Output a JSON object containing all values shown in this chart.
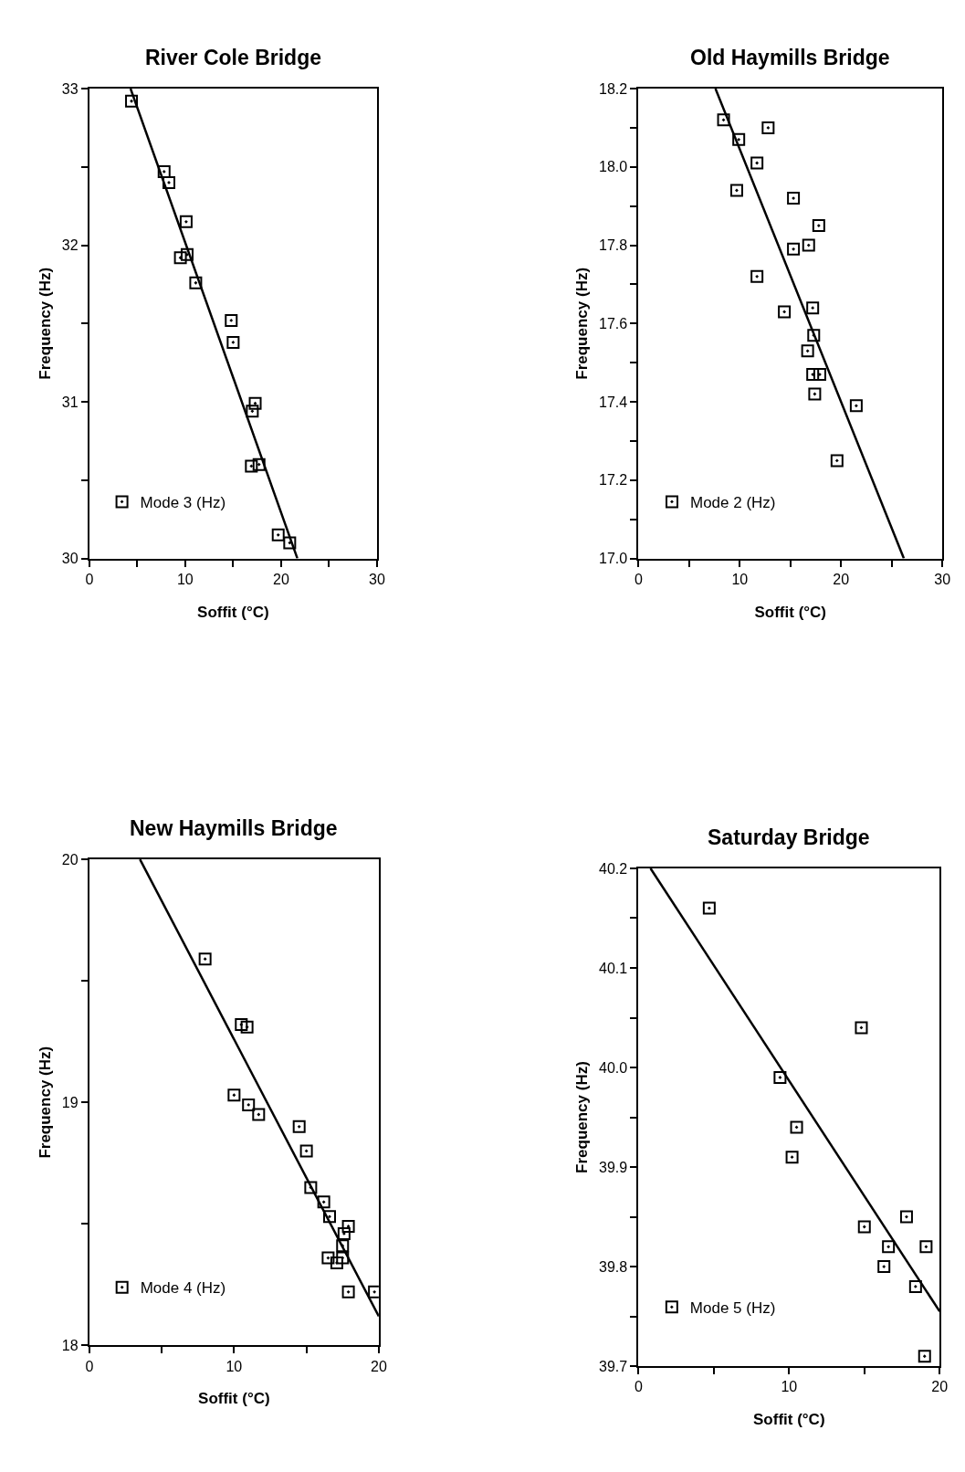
{
  "chart_data": [
    {
      "type": "scatter",
      "title": "River Cole Bridge",
      "xlabel": "Soffit (°C)",
      "ylabel": "Frequency (Hz)",
      "xlim": [
        0,
        30
      ],
      "ylim": [
        30,
        33
      ],
      "xticks": [
        0,
        {
          "value": 5,
          "label": null
        },
        10,
        {
          "value": 15,
          "label": null
        },
        20,
        {
          "value": 25,
          "label": null
        },
        30
      ],
      "yticks": [
        30,
        {
          "value": 30.5,
          "label": null
        },
        31,
        {
          "value": 31.5,
          "label": null
        },
        32,
        {
          "value": 32.5,
          "label": null
        },
        33
      ],
      "legend": "bottom left",
      "series": [
        {
          "name": "Mode 3 (Hz)",
          "marker": "square",
          "color": "#000000",
          "x": [
            4.4,
            7.8,
            8.3,
            10.1,
            9.5,
            10.2,
            11.1,
            14.8,
            15.0,
            17.3,
            17.0,
            16.9,
            17.7,
            19.7,
            20.9
          ],
          "values": [
            32.92,
            32.47,
            32.4,
            32.15,
            31.92,
            31.94,
            31.76,
            31.52,
            31.38,
            30.99,
            30.94,
            30.59,
            30.6,
            30.15,
            30.1
          ]
        },
        {
          "type": "line",
          "line_style": "solid",
          "color": "#000000",
          "x": [
            4.3,
            21.7
          ],
          "values": [
            33.0,
            30.0
          ]
        }
      ]
    },
    {
      "type": "scatter",
      "title": "Old Haymills Bridge",
      "xlabel": "Soffit (°C)",
      "ylabel": "Frequency (Hz)",
      "xlim": [
        0,
        30
      ],
      "ylim": [
        17.0,
        18.2
      ],
      "xticks": [
        0,
        {
          "value": 5,
          "label": null
        },
        10,
        {
          "value": 15,
          "label": null
        },
        20,
        {
          "value": 25,
          "label": null
        },
        30
      ],
      "yticks": [
        {
          "value": 17.0,
          "label": "17.0"
        },
        {
          "value": 17.1,
          "label": null
        },
        {
          "value": 17.2,
          "label": "17.2"
        },
        {
          "value": 17.3,
          "label": null
        },
        {
          "value": 17.4,
          "label": "17.4"
        },
        {
          "value": 17.5,
          "label": null
        },
        {
          "value": 17.6,
          "label": "17.6"
        },
        {
          "value": 17.7,
          "label": null
        },
        {
          "value": 17.8,
          "label": "17.8"
        },
        {
          "value": 17.9,
          "label": null
        },
        {
          "value": 18.0,
          "label": "18.0"
        },
        {
          "value": 18.1,
          "label": null
        },
        {
          "value": 18.2,
          "label": "18.2"
        }
      ],
      "legend": "bottom left",
      "series": [
        {
          "name": "Mode 2 (Hz)",
          "marker": "square",
          "color": "#000000",
          "x": [
            8.4,
            9.9,
            12.8,
            11.7,
            9.7,
            15.3,
            17.8,
            16.8,
            15.3,
            11.7,
            14.4,
            17.2,
            17.3,
            16.7,
            17.2,
            17.9,
            17.4,
            21.5,
            19.6
          ],
          "values": [
            18.12,
            18.07,
            18.1,
            18.01,
            17.94,
            17.92,
            17.85,
            17.8,
            17.79,
            17.72,
            17.63,
            17.64,
            17.57,
            17.53,
            17.47,
            17.47,
            17.42,
            17.39,
            17.25
          ]
        },
        {
          "type": "line",
          "line_style": "solid",
          "color": "#000000",
          "x": [
            7.6,
            26.2
          ],
          "values": [
            18.2,
            17.0
          ]
        }
      ]
    },
    {
      "type": "scatter",
      "title": "New Haymills Bridge",
      "xlabel": "Soffit (°C)",
      "ylabel": "Frequency (Hz)",
      "xlim": [
        0,
        20
      ],
      "ylim": [
        18,
        20
      ],
      "xticks": [
        0,
        {
          "value": 5,
          "label": null
        },
        10,
        {
          "value": 15,
          "label": null
        },
        20
      ],
      "yticks": [
        18,
        {
          "value": 18.5,
          "label": null
        },
        19,
        {
          "value": 19.5,
          "label": null
        },
        20
      ],
      "legend": "bottom left",
      "series": [
        {
          "name": "Mode 4 (Hz)",
          "marker": "square",
          "color": "#000000",
          "x": [
            8.0,
            10.5,
            10.9,
            10.0,
            11.0,
            11.7,
            14.5,
            15.0,
            15.3,
            16.2,
            16.6,
            17.9,
            17.6,
            17.5,
            16.5,
            17.1,
            17.5,
            17.9,
            19.7
          ],
          "values": [
            19.59,
            19.32,
            19.31,
            19.03,
            18.99,
            18.95,
            18.9,
            18.8,
            18.65,
            18.59,
            18.53,
            18.49,
            18.46,
            18.41,
            18.36,
            18.34,
            18.36,
            18.22,
            18.22
          ]
        },
        {
          "type": "line",
          "line_style": "solid",
          "color": "#000000",
          "x": [
            3.5,
            20.0
          ],
          "values": [
            20.0,
            18.12
          ]
        }
      ]
    },
    {
      "type": "scatter",
      "title": "Saturday Bridge",
      "xlabel": "Soffit (°C)",
      "ylabel": "Frequency (Hz)",
      "xlim": [
        0,
        20
      ],
      "ylim": [
        39.7,
        40.2
      ],
      "xticks": [
        0,
        {
          "value": 5,
          "label": null
        },
        10,
        {
          "value": 15,
          "label": null
        },
        20
      ],
      "yticks": [
        39.7,
        {
          "value": 39.75,
          "label": null
        },
        39.8,
        {
          "value": 39.85,
          "label": null
        },
        39.9,
        {
          "value": 39.95,
          "label": null
        },
        {
          "value": 40.0,
          "label": "40.0"
        },
        {
          "value": 40.05,
          "label": null
        },
        40.1,
        {
          "value": 40.15,
          "label": null
        },
        40.2
      ],
      "legend": "bottom left",
      "series": [
        {
          "name": "Mode 5 (Hz)",
          "marker": "square",
          "color": "#000000",
          "x": [
            4.7,
            9.4,
            14.8,
            10.5,
            10.2,
            15.0,
            17.8,
            16.6,
            19.1,
            16.3,
            18.4,
            19.0
          ],
          "values": [
            40.16,
            39.99,
            40.04,
            39.94,
            39.91,
            39.84,
            39.85,
            39.82,
            39.82,
            39.8,
            39.78,
            39.71
          ]
        },
        {
          "type": "line",
          "line_style": "solid",
          "color": "#000000",
          "x": [
            0.8,
            20.0
          ],
          "values": [
            40.2,
            39.755
          ]
        }
      ]
    }
  ]
}
